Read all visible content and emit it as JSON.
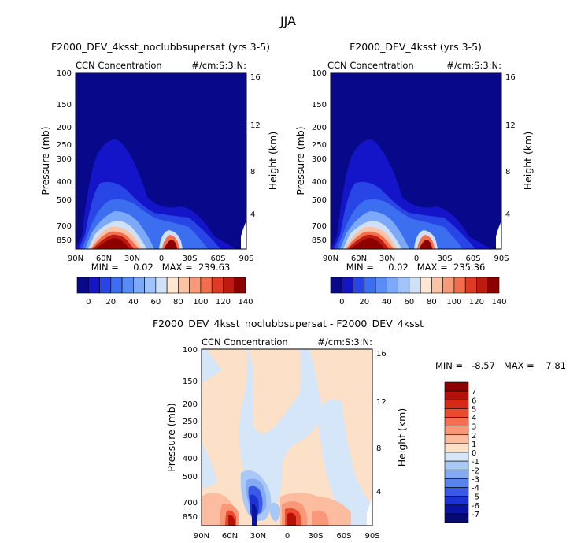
{
  "page_title": "JJA",
  "chart_data": [
    {
      "type": "heatmap",
      "title": "F2000_DEV_4ksst_noclubbsupersat (yrs 3-5)",
      "subtitle_left": "CCN Concentration",
      "subtitle_right": "#/cm:S:3:N:",
      "ylabel": "Pressure (mb)",
      "ylabel_right": "Height (km)",
      "x_ticks": [
        "90N",
        "60N",
        "30N",
        "0",
        "30S",
        "60S",
        "90S"
      ],
      "y_ticks": [
        "100",
        "150",
        "200",
        "250",
        "300",
        "400",
        "500",
        "700",
        "850"
      ],
      "y_ticks_right": [
        "16",
        "12",
        "8",
        "4"
      ],
      "stats": "MIN =     0.02   MAX =  239.63",
      "colorbar_labels": [
        "0",
        "20",
        "40",
        "60",
        "80",
        "100",
        "120",
        "140"
      ],
      "colorbar_colors": [
        "#08088a",
        "#1414c8",
        "#2846e6",
        "#3c6ef0",
        "#5a8cf5",
        "#7caaf8",
        "#a0c4fa",
        "#cfe0f7",
        "#fde6d2",
        "#fbc2a4",
        "#f89a78",
        "#f26e4c",
        "#e03a26",
        "#bd1a10",
        "#8c0000"
      ]
    },
    {
      "type": "heatmap",
      "title": "F2000_DEV_4ksst (yrs 3-5)",
      "subtitle_left": "CCN Concentration",
      "subtitle_right": "#/cm:S:3:N:",
      "ylabel": "Pressure (mb)",
      "ylabel_right": "Height (km)",
      "x_ticks": [
        "90N",
        "60N",
        "30N",
        "0",
        "30S",
        "60S",
        "90S"
      ],
      "y_ticks": [
        "100",
        "150",
        "200",
        "250",
        "300",
        "400",
        "500",
        "700",
        "850"
      ],
      "y_ticks_right": [
        "16",
        "12",
        "8",
        "4"
      ],
      "stats": "MIN =     0.02   MAX =  235.36",
      "colorbar_labels": [
        "0",
        "20",
        "40",
        "60",
        "80",
        "100",
        "120",
        "140"
      ],
      "colorbar_colors": [
        "#08088a",
        "#1414c8",
        "#2846e6",
        "#3c6ef0",
        "#5a8cf5",
        "#7caaf8",
        "#a0c4fa",
        "#cfe0f7",
        "#fde6d2",
        "#fbc2a4",
        "#f89a78",
        "#f26e4c",
        "#e03a26",
        "#bd1a10",
        "#8c0000"
      ]
    },
    {
      "type": "heatmap",
      "title": "F2000_DEV_4ksst_noclubbsupersat - F2000_DEV_4ksst",
      "subtitle_left": "CCN Concentration",
      "subtitle_right": "#/cm:S:3:N:",
      "ylabel": "Pressure (mb)",
      "ylabel_right": "Height (km)",
      "x_ticks": [
        "90N",
        "60N",
        "30N",
        "0",
        "30S",
        "60S",
        "90S"
      ],
      "y_ticks": [
        "100",
        "150",
        "200",
        "250",
        "300",
        "400",
        "500",
        "700",
        "850"
      ],
      "y_ticks_right": [
        "16",
        "12",
        "8",
        "4"
      ],
      "stats": "MIN =   -8.57   MAX =    7.81",
      "colorbar_labels": [
        "7",
        "6",
        "5",
        "4",
        "3",
        "2",
        "1",
        "0",
        "-1",
        "-2",
        "-3",
        "-4",
        "-5",
        "-6",
        "-7"
      ],
      "colorbar_colors": [
        "#8c0000",
        "#b41208",
        "#d42a18",
        "#ea4a30",
        "#f47050",
        "#f89878",
        "#fbbca0",
        "#fde0c8",
        "#d4e6f8",
        "#aac8f6",
        "#86aaf2",
        "#5a82ec",
        "#3a5ae6",
        "#1c32d2",
        "#0a14a0",
        "#060a6e"
      ]
    }
  ]
}
